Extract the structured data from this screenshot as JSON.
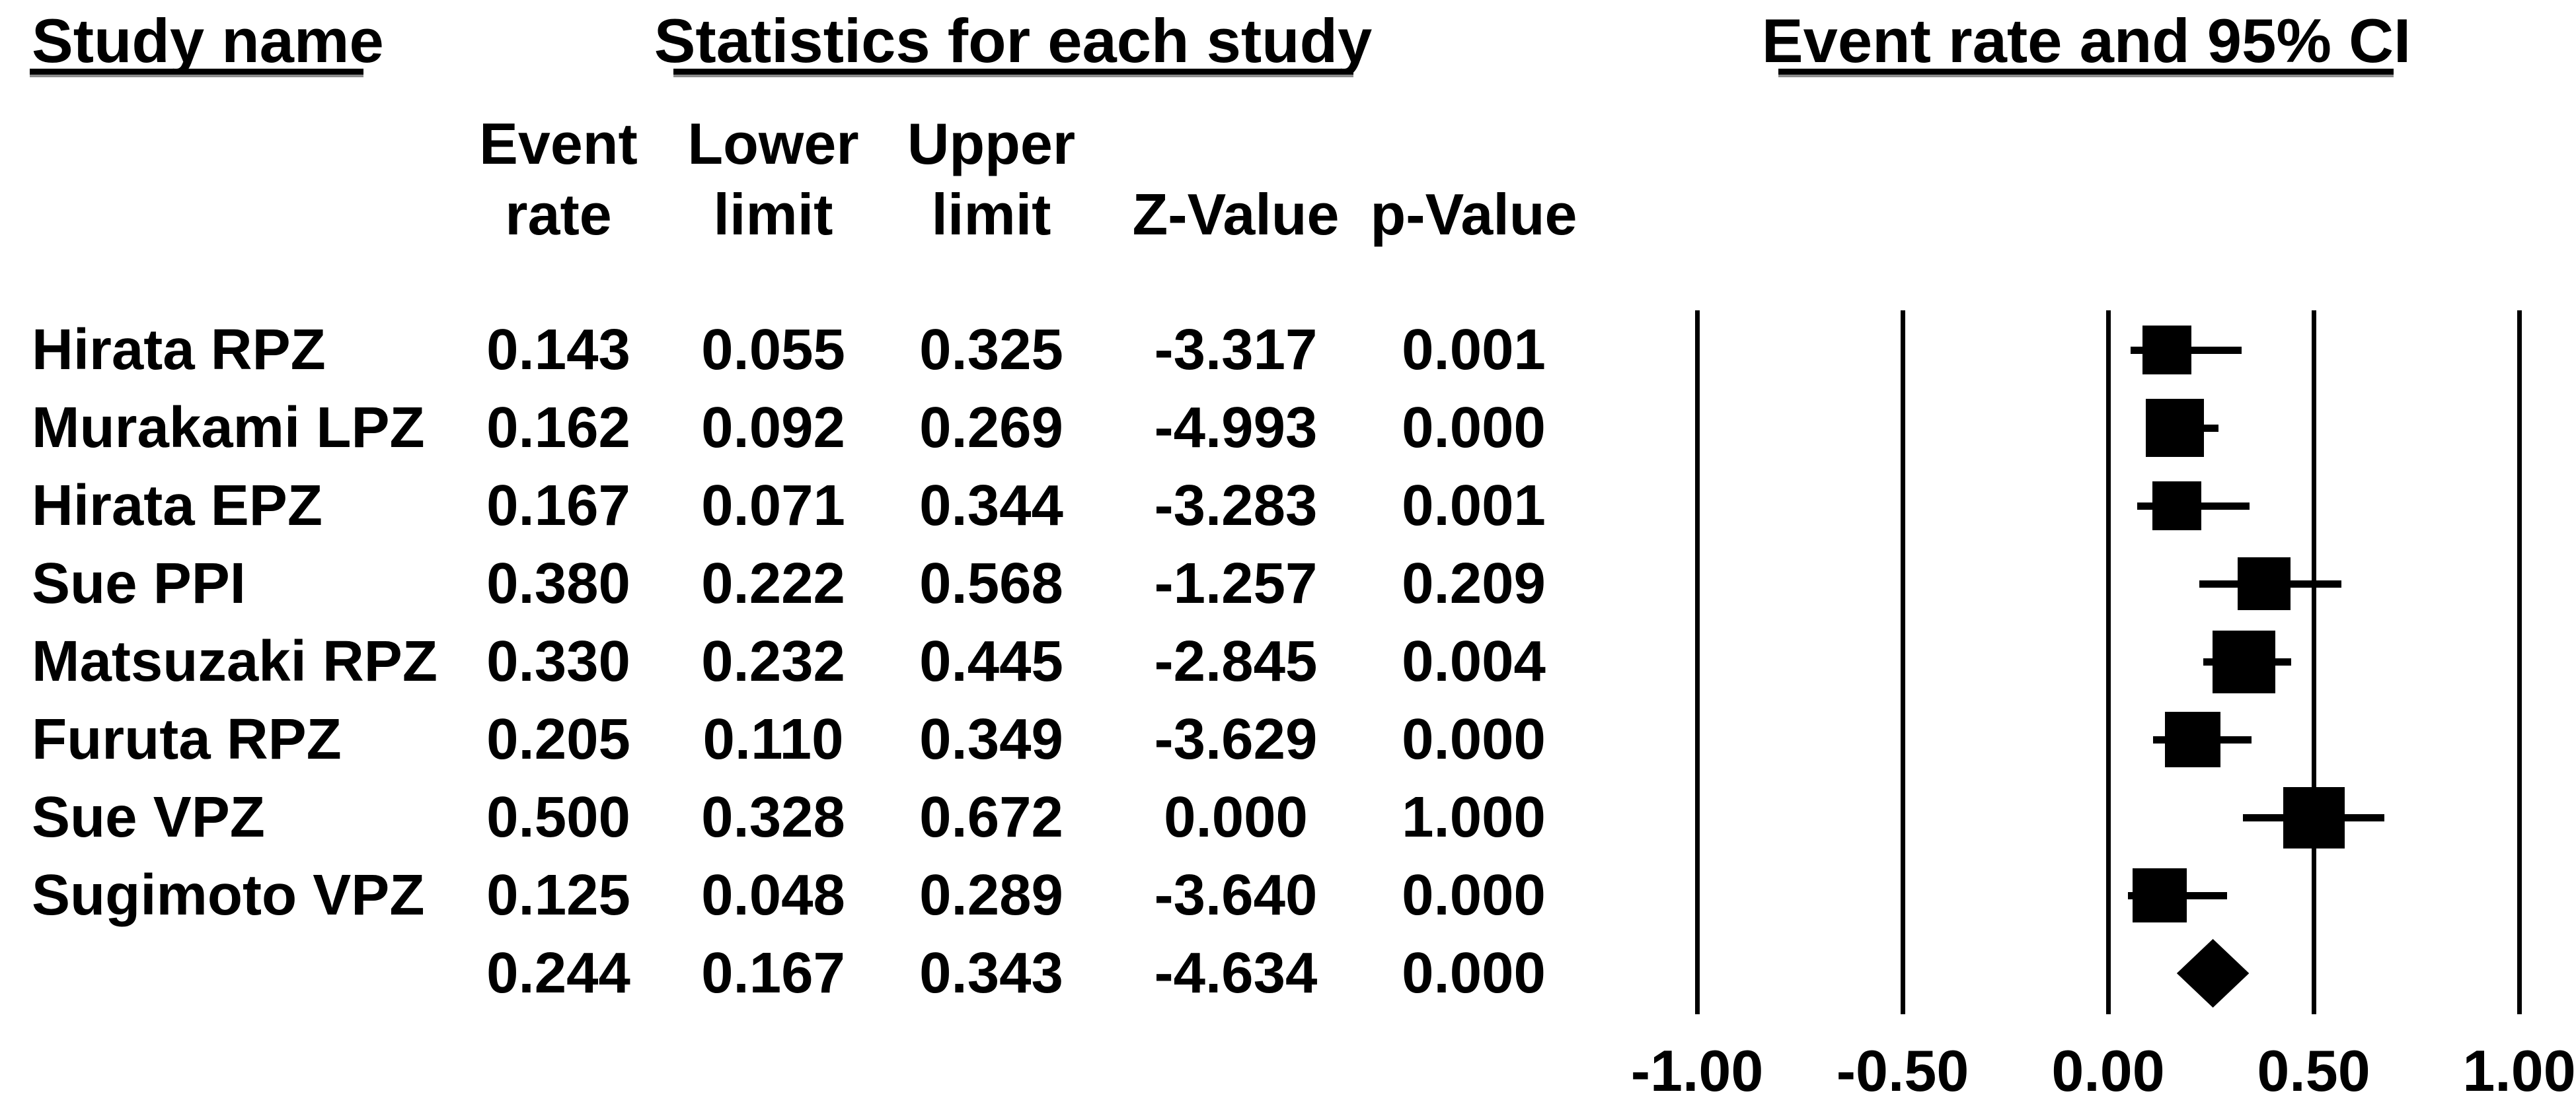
{
  "page": {
    "background_color": "#ffffff",
    "text_color": "#000000",
    "marker_color": "#000000"
  },
  "header": {
    "study_col_title": "Study name",
    "stats_col_title": "Statistics for each study",
    "plot_col_title": "Event rate and 95% CI"
  },
  "table": {
    "columns": [
      {
        "line1": "Event",
        "line2": "rate"
      },
      {
        "line1": "Lower",
        "line2": "limit"
      },
      {
        "line1": "Upper",
        "line2": "limit"
      },
      {
        "line1": "",
        "line2": "Z-Value"
      },
      {
        "line1": "",
        "line2": "p-Value"
      }
    ]
  },
  "chart_data": {
    "type": "scatter",
    "subtype": "forest-plot",
    "title": "Event rate and 95% CI",
    "xlim": [
      -1.0,
      1.0
    ],
    "grid": "vertical-lines-at-ticks",
    "ticks": [
      {
        "value": -1.0,
        "label": "-1.00"
      },
      {
        "value": -0.5,
        "label": "-0.50"
      },
      {
        "value": 0.0,
        "label": "0.00"
      },
      {
        "value": 0.5,
        "label": "0.50"
      },
      {
        "value": 1.0,
        "label": "1.00"
      }
    ],
    "studies": [
      {
        "name": "Hirata RPZ",
        "event_rate": 0.143,
        "lower": 0.055,
        "upper": 0.325,
        "z_value": -3.317,
        "p_value": "0.001",
        "cells": [
          "0.143",
          "0.055",
          "0.325",
          "-3.317",
          "0.001"
        ],
        "marker_px": 74
      },
      {
        "name": "Murakami LPZ",
        "event_rate": 0.162,
        "lower": 0.092,
        "upper": 0.269,
        "z_value": -4.993,
        "p_value": "0.000",
        "cells": [
          "0.162",
          "0.092",
          "0.269",
          "-4.993",
          "0.000"
        ],
        "marker_px": 88
      },
      {
        "name": "Hirata EPZ",
        "event_rate": 0.167,
        "lower": 0.071,
        "upper": 0.344,
        "z_value": -3.283,
        "p_value": "0.001",
        "cells": [
          "0.167",
          "0.071",
          "0.344",
          "-3.283",
          "0.001"
        ],
        "marker_px": 74
      },
      {
        "name": "Sue PPI",
        "event_rate": 0.38,
        "lower": 0.222,
        "upper": 0.568,
        "z_value": -1.257,
        "p_value": "0.209",
        "cells": [
          "0.380",
          "0.222",
          "0.568",
          "-1.257",
          "0.209"
        ],
        "marker_px": 80
      },
      {
        "name": "Matsuzaki RPZ",
        "event_rate": 0.33,
        "lower": 0.232,
        "upper": 0.445,
        "z_value": -2.845,
        "p_value": "0.004",
        "cells": [
          "0.330",
          "0.232",
          "0.445",
          "-2.845",
          "0.004"
        ],
        "marker_px": 95
      },
      {
        "name": "Furuta RPZ",
        "event_rate": 0.205,
        "lower": 0.11,
        "upper": 0.349,
        "z_value": -3.629,
        "p_value": "0.000",
        "cells": [
          "0.205",
          "0.110",
          "0.349",
          "-3.629",
          "0.000"
        ],
        "marker_px": 84
      },
      {
        "name": "Sue VPZ",
        "event_rate": 0.5,
        "lower": 0.328,
        "upper": 0.672,
        "z_value": 0.0,
        "p_value": "1.000",
        "cells": [
          "0.500",
          "0.328",
          "0.672",
          "0.000",
          "1.000"
        ],
        "marker_px": 93
      },
      {
        "name": "Sugimoto VPZ",
        "event_rate": 0.125,
        "lower": 0.048,
        "upper": 0.289,
        "z_value": -3.64,
        "p_value": "0.000",
        "cells": [
          "0.125",
          "0.048",
          "0.289",
          "-3.640",
          "0.000"
        ],
        "marker_px": 82
      }
    ],
    "summary": {
      "name": "",
      "event_rate": 0.244,
      "lower": 0.167,
      "upper": 0.343,
      "z_value": -4.634,
      "p_value": "0.000",
      "cells": [
        "0.244",
        "0.167",
        "0.343",
        "-4.634",
        "0.000"
      ],
      "marker": "diamond"
    }
  }
}
